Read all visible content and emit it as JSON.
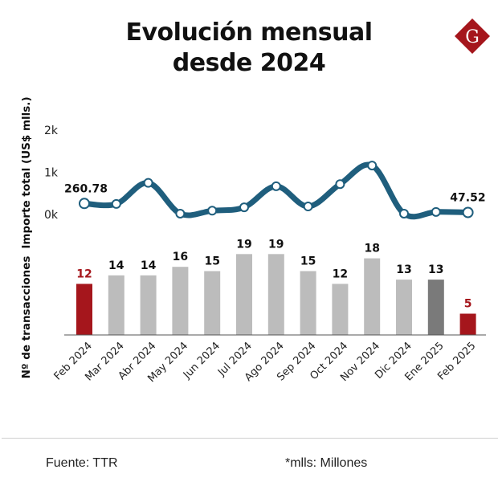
{
  "header": {
    "title_line1": "Evolución mensual",
    "title_line2": "desde 2024",
    "logo_letter": "G"
  },
  "colors": {
    "line": "#1f5e7d",
    "bar_default": "#bcbcbc",
    "bar_highlight_red": "#a5161c",
    "bar_highlight_dark": "#7a7a7a",
    "label_red": "#a5161c",
    "logo": "#a5161c"
  },
  "chart_data": [
    {
      "type": "line",
      "title": "",
      "ylabel": "Importe total (US$ mlls.)",
      "ylim": [
        0,
        2000
      ],
      "yticks": [
        0,
        1000,
        2000
      ],
      "ytick_labels": [
        "0k",
        "1k",
        "2k"
      ],
      "categories": [
        "Feb 2024",
        "Mar 2024",
        "Abr 2024",
        "May 2024",
        "Jun 2024",
        "Jul 2024",
        "Ago 2024",
        "Sep 2024",
        "Oct 2024",
        "Nov 2024",
        "Dic 2024",
        "Ene 2025",
        "Feb 2025"
      ],
      "values": [
        260.78,
        250,
        750,
        20,
        90,
        170,
        670,
        190,
        720,
        1160,
        20,
        60,
        47.52
      ],
      "data_labels": [
        {
          "index": 0,
          "text": "260.78"
        },
        {
          "index": 12,
          "text": "47.52"
        }
      ],
      "grid": false
    },
    {
      "type": "bar",
      "ylabel": "Nº de transacciones",
      "ylim": [
        0,
        20
      ],
      "categories": [
        "Feb 2024",
        "Mar 2024",
        "Abr 2024",
        "May 2024",
        "Jun 2024",
        "Jul 2024",
        "Ago 2024",
        "Sep 2024",
        "Oct 2024",
        "Nov 2024",
        "Dic 2024",
        "Ene 2025",
        "Feb 2025"
      ],
      "values": [
        12,
        14,
        14,
        16,
        15,
        19,
        19,
        15,
        12,
        18,
        13,
        13,
        5
      ],
      "highlights": [
        "red",
        "default",
        "default",
        "default",
        "default",
        "default",
        "default",
        "default",
        "default",
        "default",
        "default",
        "dark",
        "red"
      ],
      "grid": false
    }
  ],
  "footer": {
    "source": "Fuente: TTR",
    "note": "*mlls: Millones"
  }
}
